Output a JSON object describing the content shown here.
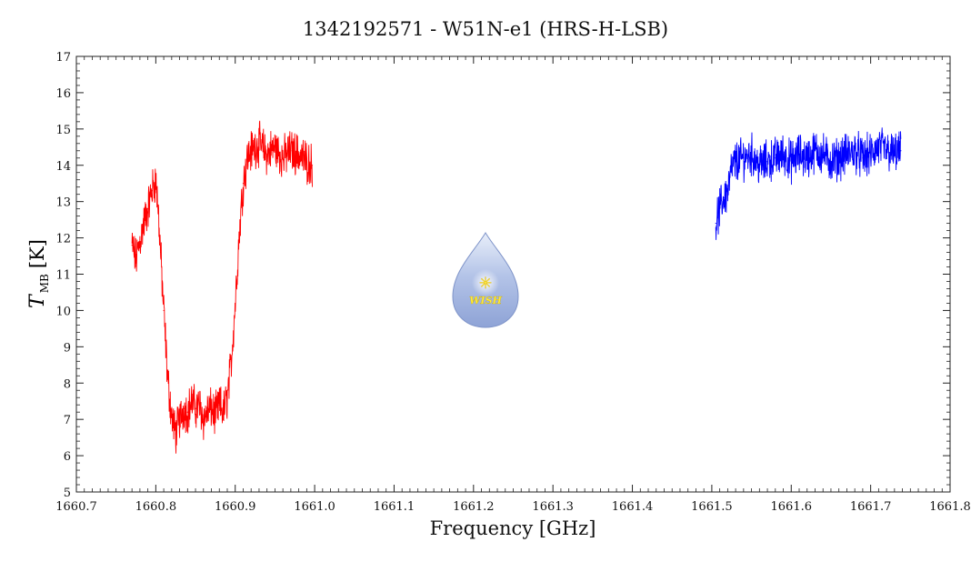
{
  "chart_data": {
    "type": "line",
    "title": "1342192571 - W51N-e1 (HRS-H-LSB)",
    "xlabel": "Frequency [GHz]",
    "ylabel_main": "T",
    "ylabel_sub": "MB",
    "ylabel_unit": "[K]",
    "xlim": [
      1660.7,
      1661.8
    ],
    "ylim": [
      5,
      17
    ],
    "x_ticks": [
      "1660.7",
      "1660.8",
      "1660.9",
      "1661.0",
      "1661.1",
      "1661.2",
      "1661.3",
      "1661.4",
      "1661.5",
      "1661.6",
      "1661.7",
      "1661.8"
    ],
    "x_tick_values": [
      1660.7,
      1660.8,
      1660.9,
      1661.0,
      1661.1,
      1661.2,
      1661.3,
      1661.4,
      1661.5,
      1661.6,
      1661.7,
      1661.8
    ],
    "y_ticks": [
      "5",
      "6",
      "7",
      "8",
      "9",
      "10",
      "11",
      "12",
      "13",
      "14",
      "15",
      "16",
      "17"
    ],
    "y_tick_values": [
      5,
      6,
      7,
      8,
      9,
      10,
      11,
      12,
      13,
      14,
      15,
      16,
      17
    ],
    "grid": false,
    "series": [
      {
        "color": "#ff0000",
        "x": [
          1660.77,
          1660.775,
          1660.78,
          1660.785,
          1660.79,
          1660.795,
          1660.8,
          1660.803,
          1660.806,
          1660.81,
          1660.815,
          1660.82,
          1660.825,
          1660.83,
          1660.835,
          1660.84,
          1660.845,
          1660.85,
          1660.855,
          1660.86,
          1660.865,
          1660.87,
          1660.875,
          1660.88,
          1660.885,
          1660.89,
          1660.895,
          1660.9,
          1660.905,
          1660.91,
          1660.915,
          1660.92,
          1660.93,
          1660.94,
          1660.95,
          1660.96,
          1660.97,
          1660.98,
          1660.99,
          1660.997
        ],
        "y": [
          11.8,
          11.4,
          11.9,
          12.4,
          12.8,
          13.3,
          13.6,
          12.8,
          11.6,
          10.0,
          8.1,
          7.1,
          6.6,
          7.0,
          7.3,
          7.2,
          7.5,
          7.3,
          7.4,
          7.0,
          7.2,
          7.3,
          7.1,
          7.4,
          7.2,
          7.6,
          8.6,
          10.2,
          12.1,
          13.5,
          14.2,
          14.4,
          14.6,
          14.3,
          14.5,
          14.2,
          14.4,
          14.3,
          14.1,
          14.0
        ]
      },
      {
        "color": "#0000ff",
        "x": [
          1661.505,
          1661.51,
          1661.515,
          1661.52,
          1661.525,
          1661.53,
          1661.54,
          1661.55,
          1661.56,
          1661.57,
          1661.58,
          1661.59,
          1661.6,
          1661.61,
          1661.62,
          1661.63,
          1661.64,
          1661.65,
          1661.66,
          1661.67,
          1661.68,
          1661.69,
          1661.7,
          1661.71,
          1661.72,
          1661.73,
          1661.738
        ],
        "y": [
          12.4,
          12.8,
          13.1,
          13.3,
          13.9,
          14.1,
          14.2,
          14.3,
          14.0,
          14.1,
          14.2,
          14.3,
          14.1,
          14.3,
          14.2,
          14.4,
          14.3,
          14.1,
          14.2,
          14.3,
          14.4,
          14.2,
          14.3,
          14.5,
          14.4,
          14.3,
          14.4
        ]
      }
    ]
  },
  "logo": {
    "text": "WISH",
    "drop_color": "#9fb4e0",
    "star_color": "#ffee55"
  }
}
